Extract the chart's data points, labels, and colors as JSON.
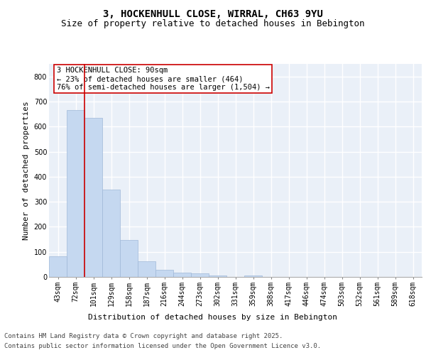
{
  "title_line1": "3, HOCKENHULL CLOSE, WIRRAL, CH63 9YU",
  "title_line2": "Size of property relative to detached houses in Bebington",
  "xlabel": "Distribution of detached houses by size in Bebington",
  "ylabel": "Number of detached properties",
  "categories": [
    "43sqm",
    "72sqm",
    "101sqm",
    "129sqm",
    "158sqm",
    "187sqm",
    "216sqm",
    "244sqm",
    "273sqm",
    "302sqm",
    "331sqm",
    "359sqm",
    "388sqm",
    "417sqm",
    "446sqm",
    "474sqm",
    "503sqm",
    "532sqm",
    "561sqm",
    "589sqm",
    "618sqm"
  ],
  "values": [
    83,
    667,
    634,
    349,
    148,
    62,
    29,
    18,
    14,
    7,
    0,
    5,
    0,
    0,
    0,
    0,
    0,
    0,
    0,
    0,
    0
  ],
  "bar_color": "#c5d8f0",
  "bar_edge_color": "#a0b8d8",
  "vline_x": 1.5,
  "vline_color": "#cc0000",
  "annotation_text": "3 HOCKENHULL CLOSE: 90sqm\n← 23% of detached houses are smaller (464)\n76% of semi-detached houses are larger (1,504) →",
  "ylim": [
    0,
    850
  ],
  "yticks": [
    0,
    100,
    200,
    300,
    400,
    500,
    600,
    700,
    800
  ],
  "background_color": "#eaf0f8",
  "grid_color": "#ffffff",
  "footer_line1": "Contains HM Land Registry data © Crown copyright and database right 2025.",
  "footer_line2": "Contains public sector information licensed under the Open Government Licence v3.0.",
  "title_fontsize": 10,
  "subtitle_fontsize": 9,
  "axis_label_fontsize": 8,
  "tick_fontsize": 7,
  "annotation_fontsize": 7.5,
  "footer_fontsize": 6.5
}
